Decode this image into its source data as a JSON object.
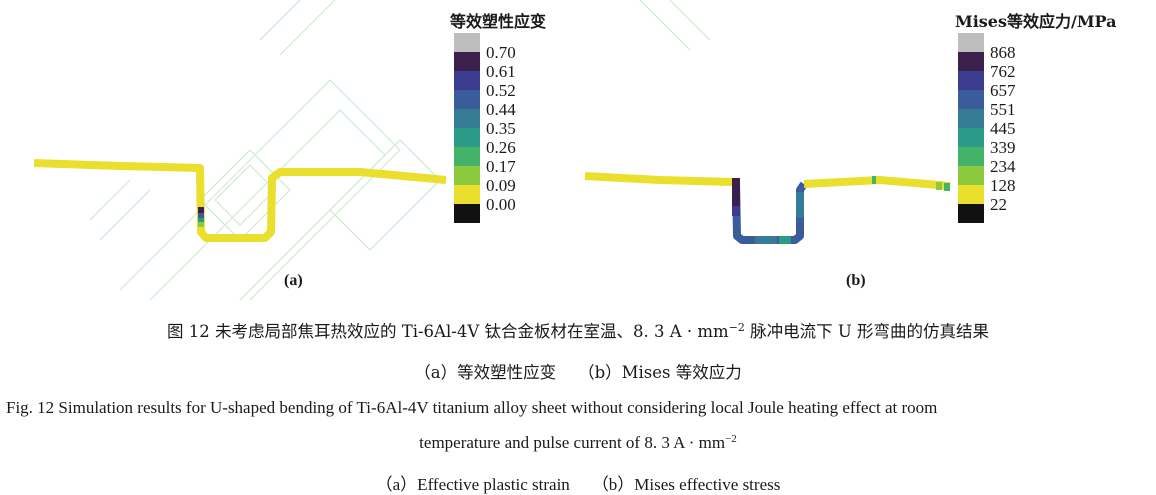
{
  "panel_a": {
    "label": "(a)",
    "legend_title": "等效塑性应变",
    "legend_ticks": [
      "0.70",
      "0.61",
      "0.52",
      "0.44",
      "0.35",
      "0.26",
      "0.17",
      "0.09",
      "0.00"
    ],
    "legend_colors": [
      "#bdbdbd",
      "#3b1f4d",
      "#3b3c8f",
      "#3a5c9b",
      "#357b96",
      "#2b9a86",
      "#44b368",
      "#8cc93f",
      "#e9df2c",
      "#111111"
    ]
  },
  "panel_b": {
    "label": "(b)",
    "legend_title": "Mises等效应力/MPa",
    "legend_ticks": [
      "868",
      "762",
      "657",
      "551",
      "445",
      "339",
      "234",
      "128",
      "22"
    ],
    "legend_colors": [
      "#bdbdbd",
      "#3b1f4d",
      "#3b3c8f",
      "#3a5c9b",
      "#357b96",
      "#2b9a86",
      "#44b368",
      "#8cc93f",
      "#e9df2c",
      "#111111"
    ]
  },
  "caption": {
    "cn_main_pre": "图 12   未考虑局部焦耳热效应的 Ti-6Al-4V 钛合金板材在室温、8. 3 A · mm",
    "cn_main_sup": "−2",
    "cn_main_post": " 脉冲电流下 U 形弯曲的仿真结果",
    "cn_sub_a": "（a）等效塑性应变",
    "cn_sub_b": "（b）Mises 等效应力",
    "en_line1": "Fig. 12   Simulation results for U-shaped bending of Ti-6Al-4V titanium alloy sheet without considering local Joule heating effect at room",
    "en_line2_pre": "temperature and pulse current of 8. 3 A · mm",
    "en_line2_sup": "−2",
    "en_sub_a": "（a）Effective plastic strain",
    "en_sub_b": "（b）Mises effective stress"
  }
}
